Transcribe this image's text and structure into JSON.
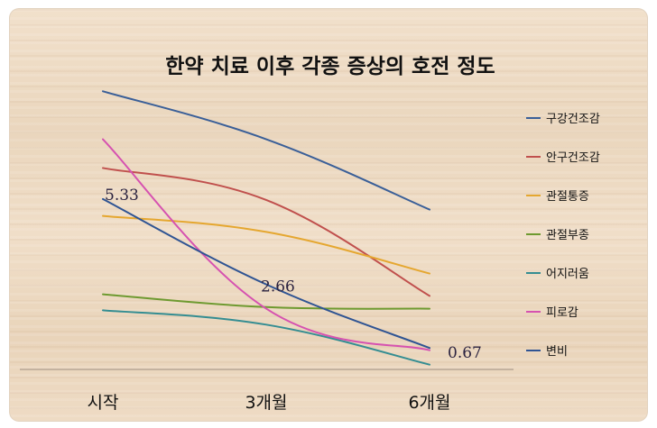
{
  "chart_data": {
    "type": "line",
    "title": "한약 치료 이후 각종 증상의 호전 정도",
    "categories": [
      "시작",
      "3개월",
      "6개월"
    ],
    "ylim": [
      0,
      9.3
    ],
    "grid": false,
    "legend_position": "right",
    "smooth": true,
    "series": [
      {
        "name": "구강건조감",
        "color": "#3a5f98",
        "values": [
          8.7,
          7.2,
          5.0
        ]
      },
      {
        "name": "안구건조감",
        "color": "#c0504d",
        "values": [
          6.3,
          5.3,
          2.3
        ]
      },
      {
        "name": "관절통증",
        "color": "#e5a730",
        "values": [
          4.8,
          4.3,
          3.0
        ]
      },
      {
        "name": "관절부종",
        "color": "#6e9a30",
        "values": [
          2.35,
          1.95,
          1.9
        ]
      },
      {
        "name": "어지러움",
        "color": "#348d92",
        "values": [
          1.85,
          1.4,
          0.15
        ]
      },
      {
        "name": "피로감",
        "color": "#d652b0",
        "values": [
          7.2,
          1.9,
          0.6
        ]
      },
      {
        "name": "변비",
        "color": "#2f5493",
        "values": [
          5.33,
          2.66,
          0.67
        ],
        "data_labels": [
          "5.33",
          "2.66",
          "0.67"
        ]
      }
    ]
  }
}
